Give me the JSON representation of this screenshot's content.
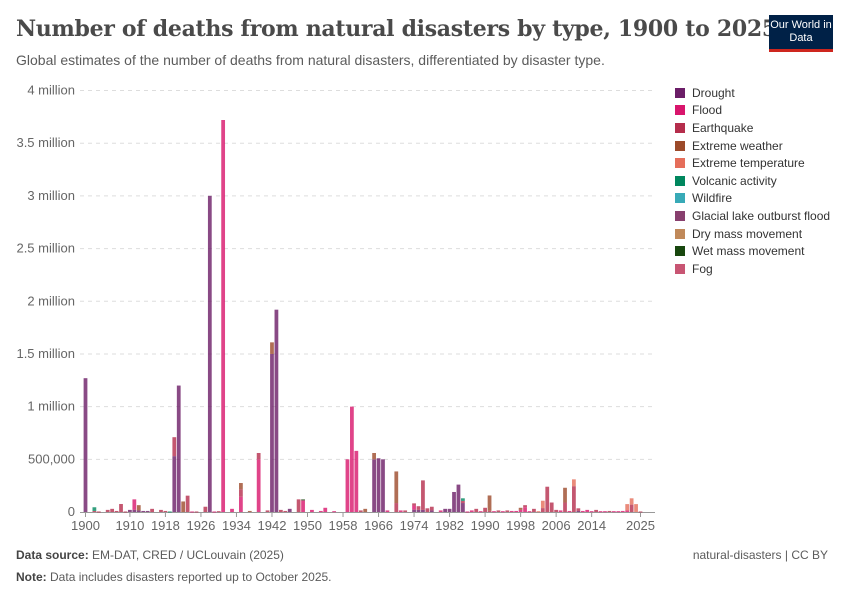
{
  "header": {
    "title": "Number of deaths from natural disasters by type, 1900 to 2025",
    "subtitle": "Global estimates of the number of deaths from natural disasters, differentiated by disaster type.",
    "logo": "Our World in Data"
  },
  "footer": {
    "source_label": "Data source:",
    "source": "EM-DAT, CRED / UCLouvain (2025)",
    "note_label": "Note:",
    "note": "Data includes disasters reported up to October 2025.",
    "license": "natural-disasters | CC BY"
  },
  "chart_data": {
    "type": "bar",
    "stacked": true,
    "xlim": [
      1900,
      2025
    ],
    "ylim": [
      0,
      4000000
    ],
    "grid": "horizontal dashed",
    "legend_position": "right",
    "y_ticks": [
      0,
      500000,
      1000000,
      1500000,
      2000000,
      2500000,
      3000000,
      3500000,
      4000000
    ],
    "y_tick_labels": [
      "0",
      "500,000",
      "1 million",
      "1.5 million",
      "2 million",
      "2.5 million",
      "3 million",
      "3.5 million",
      "4 million"
    ],
    "x_ticks": [
      "1900",
      "1910",
      "1918",
      "1926",
      "1934",
      "1942",
      "1950",
      "1958",
      "1966",
      "1974",
      "1982",
      "1990",
      "1998",
      "2006",
      "2014",
      "2025"
    ],
    "series": [
      {
        "name": "Drought",
        "color": "#6b1d67"
      },
      {
        "name": "Flood",
        "color": "#d8156c"
      },
      {
        "name": "Earthquake",
        "color": "#b52d4c"
      },
      {
        "name": "Extreme weather",
        "color": "#9c4a2a"
      },
      {
        "name": "Extreme temperature",
        "color": "#e56e5a"
      },
      {
        "name": "Volcanic activity",
        "color": "#00875e"
      },
      {
        "name": "Wildfire",
        "color": "#38aab7"
      },
      {
        "name": "Glacial lake outburst flood",
        "color": "#883f6e"
      },
      {
        "name": "Dry mass movement",
        "color": "#c0895a"
      },
      {
        "name": "Wet mass movement",
        "color": "#18470f"
      },
      {
        "name": "Fog",
        "color": "#c85573"
      }
    ],
    "data": [
      {
        "year": 1900,
        "Drought": 1270000
      },
      {
        "year": 1902,
        "Volcanic activity": 35000,
        "Earthquake": 10000
      },
      {
        "year": 1903,
        "Earthquake": 5000
      },
      {
        "year": 1905,
        "Earthquake": 20000
      },
      {
        "year": 1906,
        "Earthquake": 30000
      },
      {
        "year": 1907,
        "Earthquake": 10000
      },
      {
        "year": 1908,
        "Earthquake": 76000
      },
      {
        "year": 1909,
        "Earthquake": 5000
      },
      {
        "year": 1910,
        "Drought": 20000
      },
      {
        "year": 1911,
        "Flood": 100000,
        "Drought": 20000
      },
      {
        "year": 1912,
        "Extreme weather": 50000,
        "Drought": 15000
      },
      {
        "year": 1913,
        "Drought": 10000
      },
      {
        "year": 1914,
        "Drought": 10000
      },
      {
        "year": 1915,
        "Earthquake": 30000
      },
      {
        "year": 1917,
        "Earthquake": 20000
      },
      {
        "year": 1918,
        "Earthquake": 10000
      },
      {
        "year": 1919,
        "Volcanic activity": 5000
      },
      {
        "year": 1920,
        "Earthquake": 180000,
        "Drought": 530000
      },
      {
        "year": 1921,
        "Drought": 1200000
      },
      {
        "year": 1922,
        "Extreme weather": 100000
      },
      {
        "year": 1923,
        "Earthquake": 155000
      },
      {
        "year": 1924,
        "Flood": 5000
      },
      {
        "year": 1925,
        "Earthquake": 5000
      },
      {
        "year": 1927,
        "Earthquake": 50000
      },
      {
        "year": 1928,
        "Drought": 3000000
      },
      {
        "year": 1929,
        "Flood": 5000
      },
      {
        "year": 1930,
        "Earthquake": 8000
      },
      {
        "year": 1931,
        "Flood": 3720000
      },
      {
        "year": 1933,
        "Flood": 30000
      },
      {
        "year": 1935,
        "Extreme weather": 60000,
        "Earthquake": 70000,
        "Flood": 145000
      },
      {
        "year": 1937,
        "Extreme weather": 10000
      },
      {
        "year": 1939,
        "Earthquake": 60000,
        "Flood": 500000
      },
      {
        "year": 1941,
        "Earthquake": 15000
      },
      {
        "year": 1942,
        "Extreme weather": 110000,
        "Drought": 1500000
      },
      {
        "year": 1943,
        "Drought": 1920000
      },
      {
        "year": 1944,
        "Earthquake": 20000
      },
      {
        "year": 1945,
        "Earthquake": 10000
      },
      {
        "year": 1946,
        "Drought": 30000
      },
      {
        "year": 1948,
        "Earthquake": 120000
      },
      {
        "year": 1949,
        "Wet mass movement": 10000,
        "Flood": 110000
      },
      {
        "year": 1951,
        "Flood": 20000
      },
      {
        "year": 1953,
        "Flood": 10000
      },
      {
        "year": 1954,
        "Flood": 40000
      },
      {
        "year": 1956,
        "Flood": 8000
      },
      {
        "year": 1959,
        "Flood": 500000
      },
      {
        "year": 1960,
        "Flood": 1000000
      },
      {
        "year": 1961,
        "Flood": 580000
      },
      {
        "year": 1962,
        "Earthquake": 15000
      },
      {
        "year": 1963,
        "Extreme weather": 30000
      },
      {
        "year": 1965,
        "Extreme weather": 60000,
        "Drought": 500000
      },
      {
        "year": 1966,
        "Drought": 510000
      },
      {
        "year": 1967,
        "Drought": 500000
      },
      {
        "year": 1968,
        "Flood": 15000
      },
      {
        "year": 1970,
        "Extreme weather": 300000,
        "Earthquake": 85000
      },
      {
        "year": 1971,
        "Flood": 15000
      },
      {
        "year": 1972,
        "Earthquake": 15000
      },
      {
        "year": 1974,
        "Earthquake": 20000,
        "Flood": 40000,
        "Drought": 22000
      },
      {
        "year": 1975,
        "Earthquake": 35000,
        "Drought": 20000
      },
      {
        "year": 1976,
        "Earthquake": 280000,
        "Drought": 20000
      },
      {
        "year": 1977,
        "Earthquake": 35000
      },
      {
        "year": 1978,
        "Earthquake": 35000,
        "Drought": 15000
      },
      {
        "year": 1980,
        "Flood": 15000
      },
      {
        "year": 1981,
        "Drought": 30000
      },
      {
        "year": 1982,
        "Drought": 30000
      },
      {
        "year": 1983,
        "Drought": 190000
      },
      {
        "year": 1984,
        "Drought": 260000
      },
      {
        "year": 1985,
        "Volcanic activity": 25000,
        "Earthquake": 20000,
        "Drought": 85000
      },
      {
        "year": 1986,
        "Flood": 5000
      },
      {
        "year": 1987,
        "Flood": 15000
      },
      {
        "year": 1988,
        "Earthquake": 30000
      },
      {
        "year": 1989,
        "Flood": 8000
      },
      {
        "year": 1990,
        "Earthquake": 40000
      },
      {
        "year": 1991,
        "Extreme weather": 145000,
        "Earthquake": 12000
      },
      {
        "year": 1992,
        "Flood": 8000
      },
      {
        "year": 1993,
        "Earthquake": 15000
      },
      {
        "year": 1994,
        "Flood": 8000
      },
      {
        "year": 1995,
        "Earthquake": 15000
      },
      {
        "year": 1996,
        "Flood": 10000
      },
      {
        "year": 1997,
        "Flood": 10000
      },
      {
        "year": 1998,
        "Extreme weather": 20000,
        "Flood": 20000
      },
      {
        "year": 1999,
        "Earthquake": 20000,
        "Flood": 45000
      },
      {
        "year": 2000,
        "Flood": 8000
      },
      {
        "year": 2001,
        "Earthquake": 30000
      },
      {
        "year": 2002,
        "Extreme temperature": 8000
      },
      {
        "year": 2003,
        "Extreme temperature": 70000,
        "Earthquake": 37000
      },
      {
        "year": 2004,
        "Earthquake": 240000
      },
      {
        "year": 2005,
        "Earthquake": 90000
      },
      {
        "year": 2006,
        "Earthquake": 20000
      },
      {
        "year": 2007,
        "Flood": 15000
      },
      {
        "year": 2008,
        "Extreme weather": 140000,
        "Earthquake": 90000
      },
      {
        "year": 2009,
        "Flood": 10000
      },
      {
        "year": 2010,
        "Extreme temperature": 65000,
        "Earthquake": 245000
      },
      {
        "year": 2011,
        "Earthquake": 25000,
        "Drought": 10000
      },
      {
        "year": 2012,
        "Flood": 10000
      },
      {
        "year": 2013,
        "Flood": 20000
      },
      {
        "year": 2014,
        "Flood": 8000
      },
      {
        "year": 2015,
        "Earthquake": 20000
      },
      {
        "year": 2016,
        "Flood": 8000
      },
      {
        "year": 2017,
        "Flood": 8000
      },
      {
        "year": 2018,
        "Earthquake": 10000
      },
      {
        "year": 2019,
        "Flood": 8000
      },
      {
        "year": 2020,
        "Flood": 8000
      },
      {
        "year": 2021,
        "Flood": 10000
      },
      {
        "year": 2022,
        "Extreme temperature": 60000,
        "Flood": 15000
      },
      {
        "year": 2023,
        "Extreme temperature": 60000,
        "Earthquake": 70000
      },
      {
        "year": 2024,
        "Extreme temperature": 75000
      },
      {
        "year": 2025,
        "Earthquake": 5000
      }
    ]
  }
}
